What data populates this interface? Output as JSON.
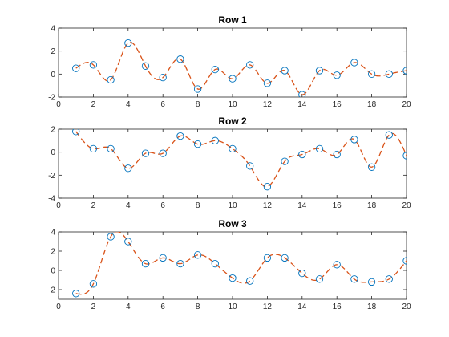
{
  "chart_data": [
    {
      "type": "line",
      "title": "Row 1",
      "xlim": [
        0,
        20
      ],
      "ylim": [
        -2,
        4
      ],
      "xticks": [
        "0",
        "2",
        "4",
        "6",
        "8",
        "10",
        "12",
        "14",
        "16",
        "18",
        "20"
      ],
      "yticks": [
        "-2",
        "0",
        "2",
        "4"
      ],
      "grid": false,
      "x": [
        1,
        2,
        3,
        4,
        5,
        6,
        7,
        8,
        9,
        10,
        11,
        12,
        13,
        14,
        15,
        16,
        17,
        18,
        19,
        20
      ],
      "series": [
        {
          "style": "markers",
          "marker": "circle",
          "color": "#0072BD",
          "values": [
            0.5,
            0.8,
            -0.5,
            2.7,
            0.7,
            -0.3,
            1.3,
            -1.3,
            0.4,
            -0.4,
            0.8,
            -0.8,
            0.3,
            -1.8,
            0.3,
            -0.1,
            1.0,
            0.0,
            0.0,
            0.3
          ]
        },
        {
          "style": "dashed",
          "interpolation": "spline",
          "color": "#D95319",
          "values": [
            0.5,
            0.8,
            -0.5,
            2.7,
            0.7,
            -0.3,
            1.3,
            -1.3,
            0.4,
            -0.4,
            0.8,
            -0.8,
            0.3,
            -1.8,
            0.3,
            -0.1,
            1.0,
            0.0,
            0.0,
            0.3
          ]
        }
      ]
    },
    {
      "type": "line",
      "title": "Row 2",
      "xlim": [
        0,
        20
      ],
      "ylim": [
        -4,
        2
      ],
      "xticks": [
        "0",
        "2",
        "4",
        "6",
        "8",
        "10",
        "12",
        "14",
        "16",
        "18",
        "20"
      ],
      "yticks": [
        "-4",
        "-2",
        "0",
        "2"
      ],
      "grid": false,
      "x": [
        1,
        2,
        3,
        4,
        5,
        6,
        7,
        8,
        9,
        10,
        11,
        12,
        13,
        14,
        15,
        16,
        17,
        18,
        19,
        20
      ],
      "series": [
        {
          "style": "markers",
          "marker": "circle",
          "color": "#0072BD",
          "values": [
            1.8,
            0.3,
            0.3,
            -1.4,
            -0.1,
            -0.1,
            1.4,
            0.7,
            1.0,
            0.3,
            -1.2,
            -3.0,
            -0.8,
            -0.2,
            0.3,
            -0.2,
            1.1,
            -1.3,
            1.5,
            -0.3
          ]
        },
        {
          "style": "dashed",
          "interpolation": "spline",
          "color": "#D95319",
          "values": [
            1.8,
            0.3,
            0.3,
            -1.4,
            -0.1,
            -0.1,
            1.4,
            0.7,
            1.0,
            0.3,
            -1.2,
            -3.0,
            -0.8,
            -0.2,
            0.3,
            -0.2,
            1.1,
            -1.3,
            1.5,
            -0.3
          ]
        }
      ]
    },
    {
      "type": "line",
      "title": "Row 3",
      "xlim": [
        0,
        20
      ],
      "ylim": [
        -3,
        4
      ],
      "xticks": [
        "0",
        "2",
        "4",
        "6",
        "8",
        "10",
        "12",
        "14",
        "16",
        "18",
        "20"
      ],
      "yticks": [
        "-2",
        "0",
        "2",
        "4"
      ],
      "grid": false,
      "x": [
        1,
        2,
        3,
        4,
        5,
        6,
        7,
        8,
        9,
        10,
        11,
        12,
        13,
        14,
        15,
        16,
        17,
        18,
        19,
        20
      ],
      "series": [
        {
          "style": "markers",
          "marker": "circle",
          "color": "#0072BD",
          "values": [
            -2.4,
            -1.4,
            3.5,
            3.0,
            0.7,
            1.3,
            0.7,
            1.6,
            0.7,
            -0.8,
            -1.1,
            1.3,
            1.3,
            -0.3,
            -0.9,
            0.6,
            -0.9,
            -1.2,
            -0.9,
            1.0
          ]
        },
        {
          "style": "dashed",
          "interpolation": "spline",
          "color": "#D95319",
          "values": [
            -2.4,
            -1.4,
            3.5,
            3.0,
            0.7,
            1.3,
            0.7,
            1.6,
            0.7,
            -0.8,
            -1.1,
            1.3,
            1.3,
            -0.3,
            -0.9,
            0.6,
            -0.9,
            -1.2,
            -0.9,
            1.0
          ]
        }
      ]
    }
  ]
}
